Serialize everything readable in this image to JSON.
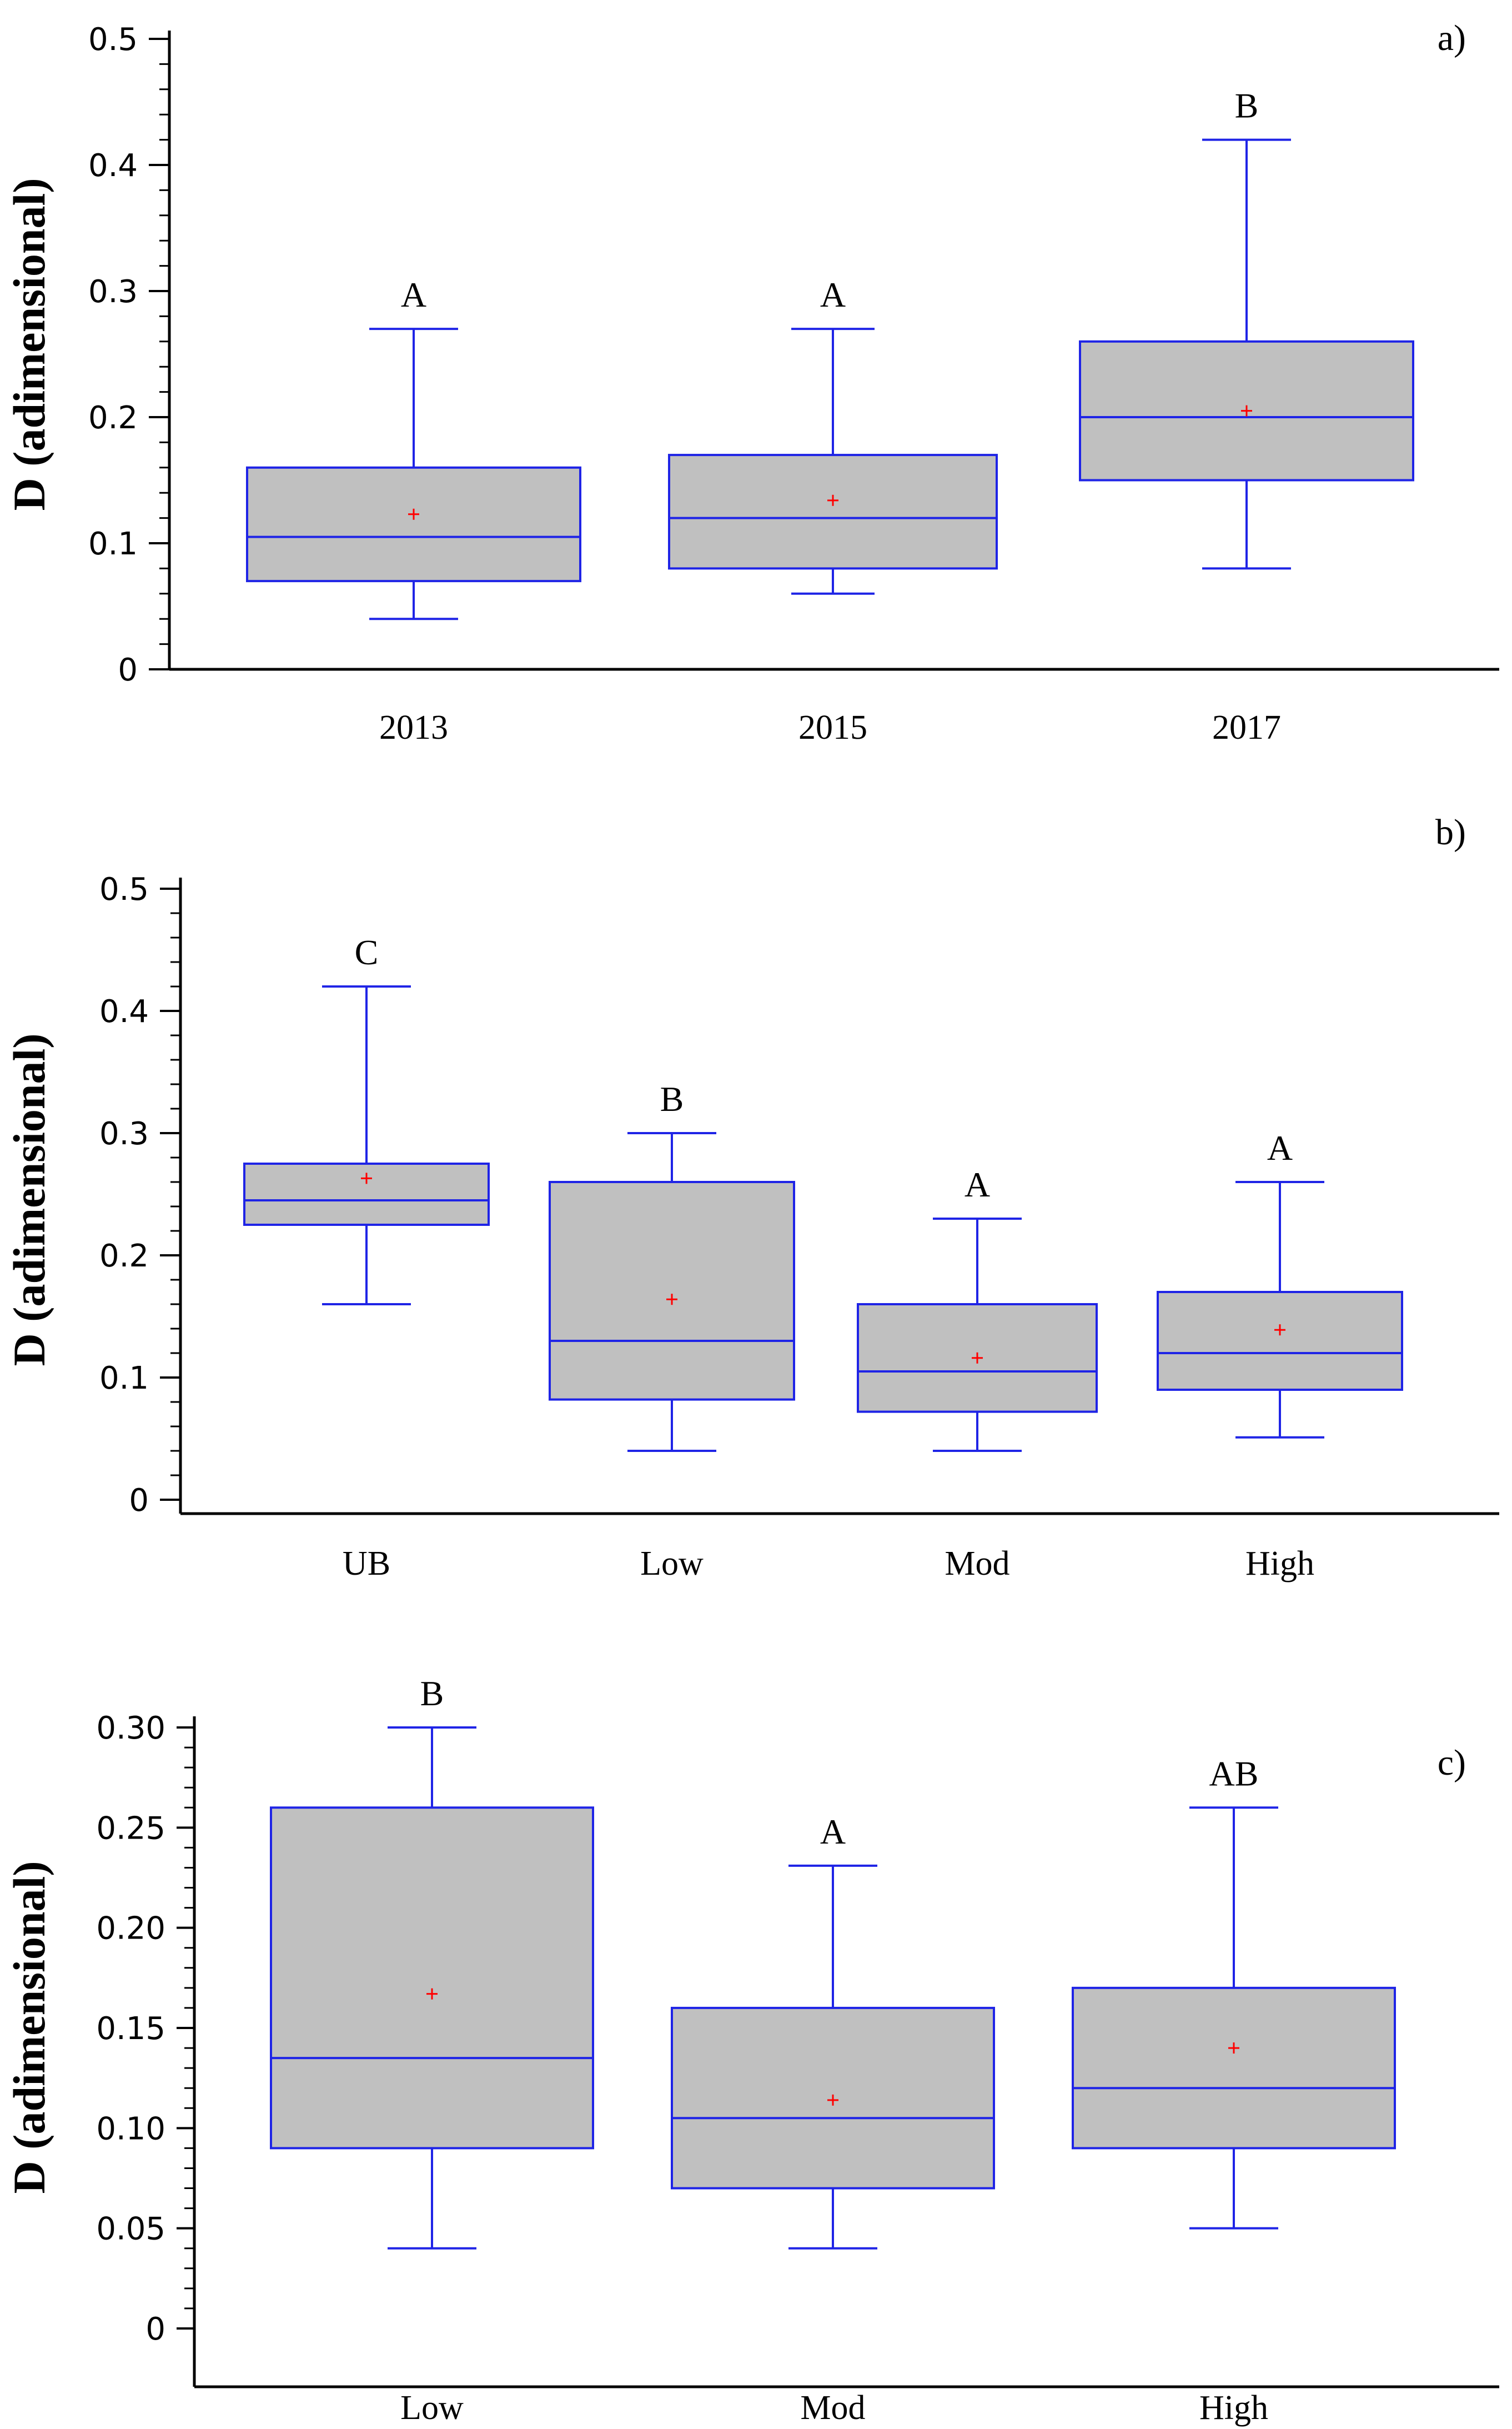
{
  "figure": {
    "colors": {
      "box_fill": "#c0c0c0",
      "box_stroke": "#1f24e6",
      "mean_marker": "#ff0000",
      "axis": "#000000"
    }
  },
  "chart_data": [
    {
      "type": "box",
      "panel_tag": "a)",
      "ylabel": "D (adimensional)",
      "ylim": [
        0,
        0.5
      ],
      "yticks": [
        0,
        0.1,
        0.2,
        0.3,
        0.4,
        0.5
      ],
      "ytick_labels": [
        "0",
        "0.1",
        "0.2",
        "0.3",
        "0.4",
        "0.5"
      ],
      "categories": [
        "2013",
        "2015",
        "2017"
      ],
      "boxes": [
        {
          "min": 0.04,
          "q1": 0.07,
          "median": 0.105,
          "q3": 0.16,
          "max": 0.27,
          "mean": 0.123,
          "letter": "A"
        },
        {
          "min": 0.06,
          "q1": 0.08,
          "median": 0.12,
          "q3": 0.17,
          "max": 0.27,
          "mean": 0.134,
          "letter": "A"
        },
        {
          "min": 0.08,
          "q1": 0.15,
          "median": 0.2,
          "q3": 0.26,
          "max": 0.42,
          "mean": 0.205,
          "letter": "B"
        }
      ]
    },
    {
      "type": "box",
      "panel_tag": "b)",
      "ylabel": "D (adimensional)",
      "ylim": [
        0,
        0.5
      ],
      "yticks": [
        0,
        0.1,
        0.2,
        0.3,
        0.4,
        0.5
      ],
      "ytick_labels": [
        "0",
        "0.1",
        "0.2",
        "0.3",
        "0.4",
        "0.5"
      ],
      "categories": [
        "UB",
        "Low",
        "Mod",
        "High"
      ],
      "boxes": [
        {
          "min": 0.16,
          "q1": 0.225,
          "median": 0.245,
          "q3": 0.275,
          "max": 0.42,
          "mean": 0.263,
          "letter": "C"
        },
        {
          "min": 0.04,
          "q1": 0.082,
          "median": 0.13,
          "q3": 0.26,
          "max": 0.3,
          "mean": 0.164,
          "letter": "B"
        },
        {
          "min": 0.04,
          "q1": 0.072,
          "median": 0.105,
          "q3": 0.16,
          "max": 0.23,
          "mean": 0.116,
          "letter": "A"
        },
        {
          "min": 0.051,
          "q1": 0.09,
          "median": 0.12,
          "q3": 0.17,
          "max": 0.26,
          "mean": 0.139,
          "letter": "A"
        }
      ]
    },
    {
      "type": "box",
      "panel_tag": "c)",
      "ylabel": "D (adimensional)",
      "ylim": [
        0,
        0.3
      ],
      "yticks": [
        0,
        0.05,
        0.1,
        0.15,
        0.2,
        0.25,
        0.3
      ],
      "ytick_labels": [
        "0",
        "0.05",
        "0.10",
        "0.15",
        "0.20",
        "0.25",
        "0.30"
      ],
      "categories": [
        "Low",
        "Mod",
        "High"
      ],
      "boxes": [
        {
          "min": 0.04,
          "q1": 0.09,
          "median": 0.135,
          "q3": 0.26,
          "max": 0.3,
          "mean": 0.167,
          "letter": "B"
        },
        {
          "min": 0.04,
          "q1": 0.07,
          "median": 0.105,
          "q3": 0.16,
          "max": 0.231,
          "mean": 0.114,
          "letter": "A"
        },
        {
          "min": 0.05,
          "q1": 0.09,
          "median": 0.12,
          "q3": 0.17,
          "max": 0.26,
          "mean": 0.14,
          "letter": "AB"
        }
      ]
    }
  ]
}
